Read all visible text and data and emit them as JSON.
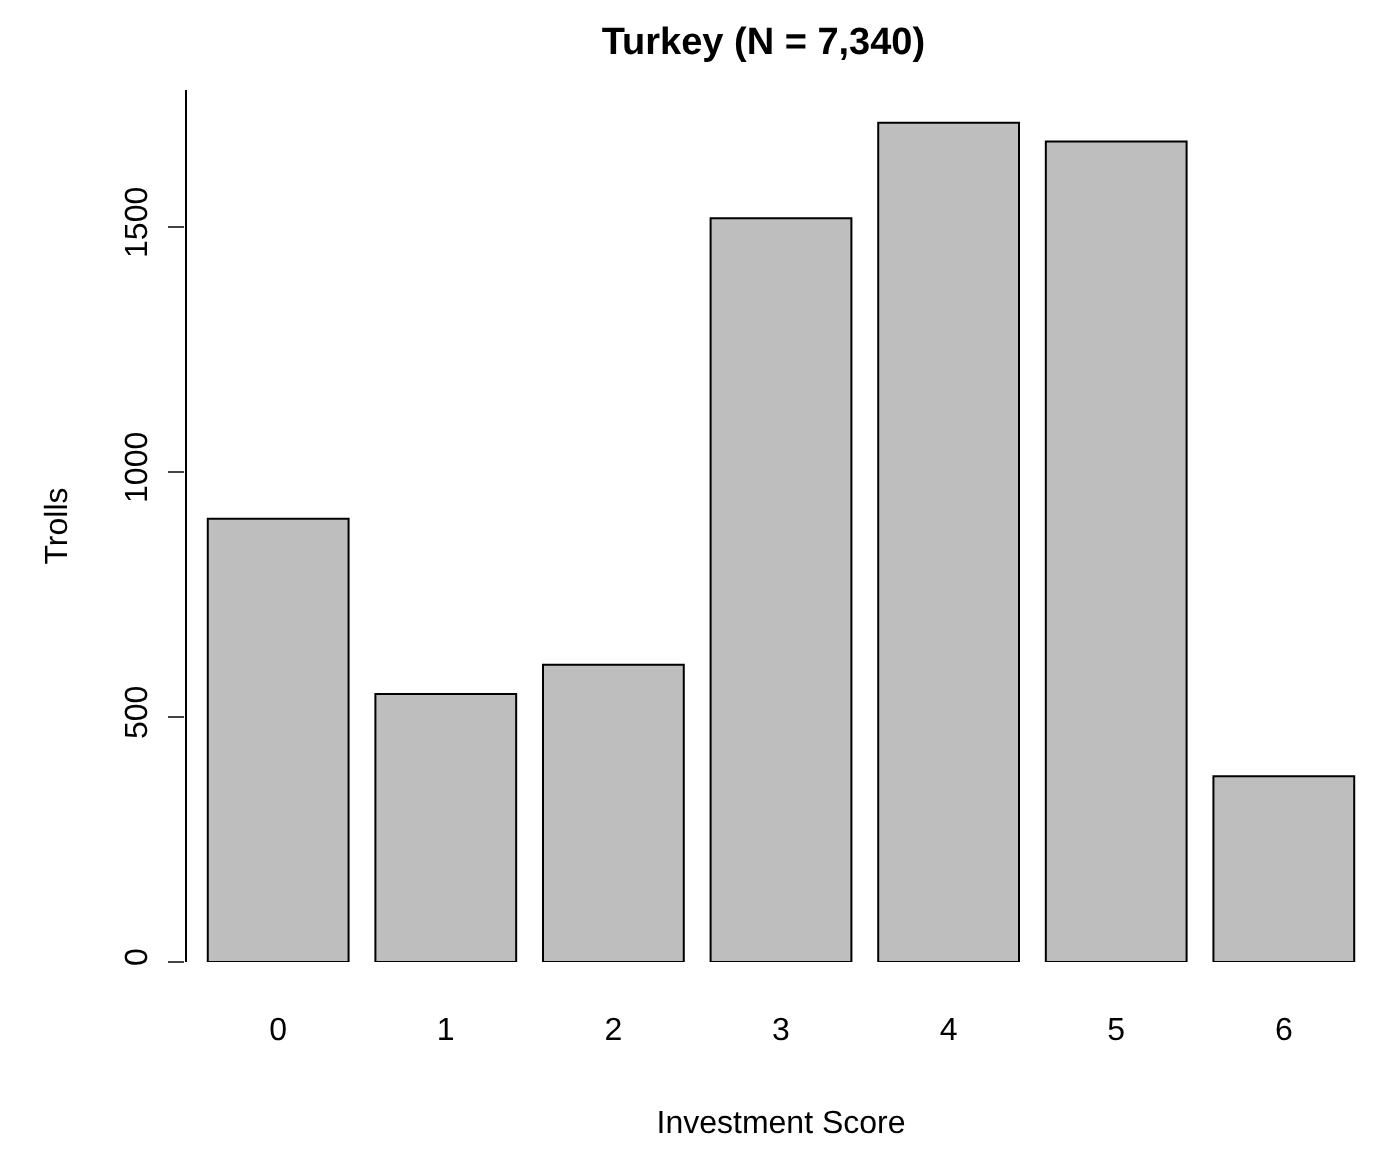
{
  "chart_data": {
    "type": "bar",
    "title": "Turkey (N = 7,340)",
    "xlabel": "Investment Score",
    "ylabel": "Trolls",
    "categories": [
      "0",
      "1",
      "2",
      "3",
      "4",
      "5",
      "6"
    ],
    "values": [
      905,
      547,
      607,
      1518,
      1713,
      1675,
      379
    ],
    "color": "#bebebe",
    "ylim": [
      0,
      1780
    ],
    "yticks": [
      0,
      500,
      1000,
      1500
    ],
    "grid": false,
    "legend": false
  }
}
